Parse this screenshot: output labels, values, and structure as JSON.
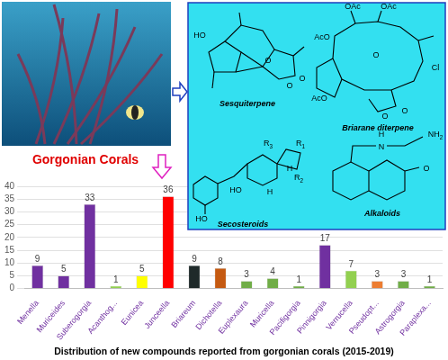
{
  "photo_label": "Gorgonian Corals",
  "structures": [
    {
      "name": "Sesquiterpene",
      "labels": [
        "HO",
        "O",
        "O",
        "O"
      ]
    },
    {
      "name": "Briarane diterpene",
      "labels": [
        "OAc",
        "OAc",
        "AcO",
        "Cl",
        "AcO",
        "O",
        "O",
        "O"
      ]
    },
    {
      "name": "Secosteroids",
      "labels": [
        "R1",
        "R2",
        "R3",
        "H",
        "H",
        "HO",
        "HO"
      ]
    },
    {
      "name": "Alkaloids",
      "labels": [
        "H",
        "N",
        "NH2",
        "O"
      ]
    }
  ],
  "caption": "Distribution of new compounds reported from gorgonian corals (2015-2019)",
  "chart_data": {
    "type": "bar",
    "categories": [
      "Menella",
      "Muriceides",
      "Suberogorgia",
      "Acanthog...",
      "Eunicea",
      "Junceella",
      "Briareum",
      "Dichotella",
      "Euplexaura",
      "Muricella",
      "Pacifigorgia",
      "Pinnigorgia",
      "Verrucella",
      "Pseudopt...",
      "Astrogorgia",
      "Paraplexa..."
    ],
    "values": [
      9,
      5,
      33,
      1,
      5,
      36,
      9,
      8,
      3,
      4,
      1,
      17,
      7,
      3,
      3,
      1
    ],
    "colors": [
      "#7030a0",
      "#7030a0",
      "#7030a0",
      "#92d050",
      "#ffff00",
      "#ff0000",
      "#1f2a2a",
      "#c55a11",
      "#70ad47",
      "#70ad47",
      "#70ad47",
      "#7030a0",
      "#92d050",
      "#ed7d31",
      "#70ad47",
      "#70ad47"
    ],
    "ylim": [
      0,
      40
    ],
    "yticks": [
      0,
      5,
      10,
      15,
      20,
      25,
      30,
      35,
      40
    ],
    "grid": true,
    "data_labels": true
  }
}
